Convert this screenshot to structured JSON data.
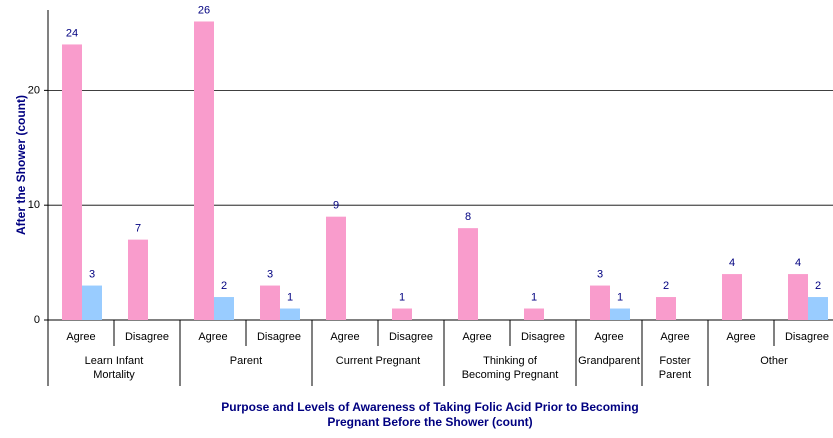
{
  "chart_data": {
    "type": "bar",
    "ylabel": "After the Shower (count)",
    "xlabel": "Purpose and Levels of Awareness of Taking Folic Acid Prior to Becoming\nPregnant Before the Shower (count)",
    "groups": [
      {
        "label": "Learn Infant\nMortality",
        "categories": [
          "Agree",
          "Disagree"
        ]
      },
      {
        "label": "Parent",
        "categories": [
          "Agree",
          "Disagree"
        ]
      },
      {
        "label": "Current Pregnant",
        "categories": [
          "Agree",
          "Disagree"
        ]
      },
      {
        "label": "Thinking of\nBecoming Pregnant",
        "categories": [
          "Agree",
          "Disagree"
        ]
      },
      {
        "label": "Grandparent",
        "categories": [
          "Agree"
        ]
      },
      {
        "label": "Foster\nParent",
        "categories": [
          "Agree"
        ]
      },
      {
        "label": "Other",
        "categories": [
          "Agree",
          "Disagree"
        ]
      }
    ],
    "series": [
      {
        "color": "#f99ccc",
        "values": [
          24,
          7,
          26,
          3,
          9,
          1,
          8,
          1,
          3,
          2,
          4,
          4
        ]
      },
      {
        "color": "#99ccff",
        "values": [
          3,
          null,
          2,
          1,
          null,
          null,
          null,
          null,
          1,
          null,
          null,
          2
        ]
      }
    ],
    "ylim": [
      0,
      27
    ],
    "yticks": [
      0,
      10,
      20
    ],
    "grid": true
  }
}
